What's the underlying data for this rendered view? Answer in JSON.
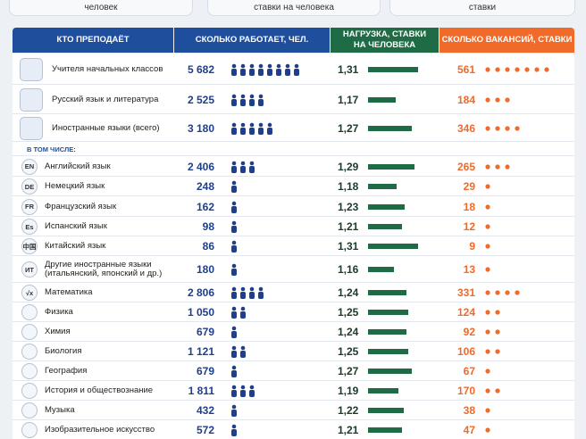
{
  "top_cards": [
    "человек",
    "ставки на человека",
    "ставки"
  ],
  "table": {
    "header": {
      "who": "КТО ПРЕПОДАЁТ",
      "workers": "СКОЛЬКО РАБОТАЕТ, ЧЕЛ.",
      "load": "НАГРУЗКА, СТАВКИ НА ЧЕЛОВЕКА",
      "vacancies": "СКОЛЬКО ВАКАНСИЙ, СТАВКИ"
    },
    "subheader": "В ТОМ ЧИСЛЕ:",
    "rows": [
      {
        "name": "Учителя начальных классов",
        "workers": {
          "value": 5682,
          "label": "5 682"
        },
        "load": {
          "value": 1.31,
          "label": "1,31"
        },
        "vacancies": 561
      },
      {
        "name": "Русский язык и литература",
        "workers": {
          "value": 2525,
          "label": "2 525"
        },
        "load": {
          "value": 1.17,
          "label": "1,17"
        },
        "vacancies": 184
      },
      {
        "name": "Иностранные языки (всего)",
        "workers": {
          "value": 3180,
          "label": "3 180"
        },
        "load": {
          "value": 1.27,
          "label": "1,27"
        },
        "vacancies": 346
      },
      {
        "badge": "EN",
        "name": "Английский язык",
        "workers": {
          "value": 2406,
          "label": "2 406"
        },
        "load": {
          "value": 1.29,
          "label": "1,29"
        },
        "vacancies": 265
      },
      {
        "badge": "DE",
        "name": "Немецкий язык",
        "workers": 248,
        "load": {
          "value": 1.18,
          "label": "1,18"
        },
        "vacancies": 29
      },
      {
        "badge": "FR",
        "name": "Французский язык",
        "workers": 162,
        "load": {
          "value": 1.23,
          "label": "1,23"
        },
        "vacancies": 18
      },
      {
        "badge": "Es",
        "name": "Испанский язык",
        "workers": 98,
        "load": {
          "value": 1.21,
          "label": "1,21"
        },
        "vacancies": 12
      },
      {
        "badge": "中国",
        "name": "Китайский язык",
        "workers": 86,
        "load": {
          "value": 1.31,
          "label": "1,31"
        },
        "vacancies": 9
      },
      {
        "badge": "ИТ",
        "name": "Другие иностранные языки (итальянский, японский и др.)",
        "workers": 180,
        "load": {
          "value": 1.16,
          "label": "1,16"
        },
        "vacancies": 13
      },
      {
        "badge": "√x",
        "name": "Математика",
        "workers": {
          "value": 2806,
          "label": "2 806"
        },
        "load": {
          "value": 1.24,
          "label": "1,24"
        },
        "vacancies": 331
      },
      {
        "name": "Физика",
        "workers": {
          "value": 1050,
          "label": "1 050"
        },
        "load": {
          "value": 1.25,
          "label": "1,25"
        },
        "vacancies": 124
      },
      {
        "name": "Химия",
        "workers": 679,
        "load": {
          "value": 1.24,
          "label": "1,24"
        },
        "vacancies": 92
      },
      {
        "name": "Биология",
        "workers": {
          "value": 1121,
          "label": "1 121"
        },
        "load": {
          "value": 1.25,
          "label": "1,25"
        },
        "vacancies": 106
      },
      {
        "name": "География",
        "workers": 679,
        "load": {
          "value": 1.27,
          "label": "1,27"
        },
        "vacancies": 67
      },
      {
        "name": "История и обществознание",
        "workers": {
          "value": 1811,
          "label": "1 811"
        },
        "load": {
          "value": 1.19,
          "label": "1,19"
        },
        "vacancies": 170
      },
      {
        "name": "Музыка",
        "workers": 432,
        "load": {
          "value": 1.22,
          "label": "1,22"
        },
        "vacancies": 38
      },
      {
        "name": "Изобразительное искусство",
        "workers": 572,
        "load": {
          "value": 1.21,
          "label": "1,21"
        },
        "vacancies": 47
      }
    ]
  }
}
